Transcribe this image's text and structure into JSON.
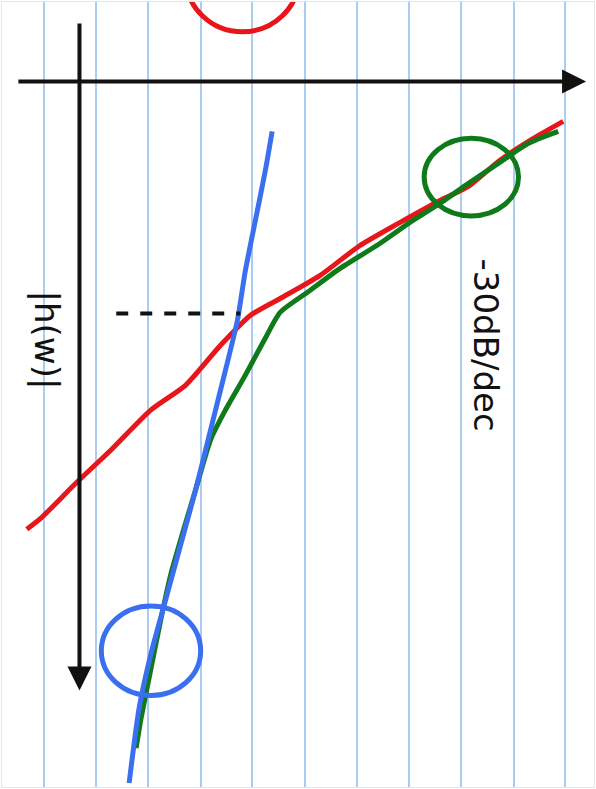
{
  "chart_data": {
    "type": "line",
    "xlim": [
      0,
      596
    ],
    "ylim": [
      789,
      0
    ],
    "xticks": [
      42,
      95,
      147,
      200,
      252,
      305,
      357,
      410,
      462,
      515,
      567
    ],
    "yticks": [],
    "grid": true,
    "tick_labels": false,
    "series": [
      {
        "color": "#e8161b",
        "x": [
          25,
          40,
          75,
          110,
          150,
          185,
          220,
          250,
          280,
          320,
          360,
          400,
          440,
          470,
          500,
          530,
          565
        ],
        "values": [
          530,
          518,
          483,
          450,
          410,
          385,
          345,
          315,
          298,
          275,
          245,
          222,
          200,
          185,
          160,
          140,
          120
        ]
      },
      {
        "color": "#0f7a1a",
        "x": [
          560,
          530,
          500,
          470,
          440,
          410,
          380,
          340,
          310,
          280,
          265,
          245,
          225,
          210,
          195,
          180,
          170,
          160,
          150,
          140,
          135
        ],
        "values": [
          130,
          142,
          162,
          182,
          203,
          222,
          243,
          268,
          290,
          312,
          338,
          375,
          410,
          440,
          490,
          540,
          575,
          620,
          670,
          720,
          750
        ]
      },
      {
        "color": "#3a6ff0",
        "x": [
          272,
          265,
          255,
          245,
          237,
          225,
          210,
          195,
          180,
          165,
          150,
          138,
          128
        ],
        "values": [
          130,
          170,
          220,
          270,
          320,
          370,
          430,
          490,
          545,
          600,
          655,
          710,
          785
        ]
      }
    ],
    "circles": [
      {
        "color": "#e8161b",
        "x0": 185,
        "x1": 299,
        "y0": -80,
        "y1": 30
      },
      {
        "color": "#0f7a1a",
        "x0": 425,
        "x1": 520,
        "y0": 137,
        "y1": 215
      },
      {
        "color": "#3a6ff0",
        "x0": 100,
        "x1": 200,
        "y0": 607,
        "y1": 697
      }
    ],
    "dotted_line": {
      "color": "#111111",
      "x0": 115,
      "y0": 313,
      "x1": 240,
      "y1": 313
    },
    "arrows": [
      {
        "color": "#111111",
        "x_tail": 15,
        "y_tail": 80,
        "x_head": 588,
        "y_head": 80
      },
      {
        "color": "#111111",
        "x_tail": 78,
        "y_tail": 20,
        "x_head": 78,
        "y_head": 692
      }
    ],
    "annotations": [
      {
        "text": "-30dB/dec",
        "x": 487,
        "y": 345,
        "color": "#111111"
      },
      {
        "text": "|h(w)|",
        "x": 45,
        "y": 340,
        "color": "#111111"
      }
    ]
  }
}
